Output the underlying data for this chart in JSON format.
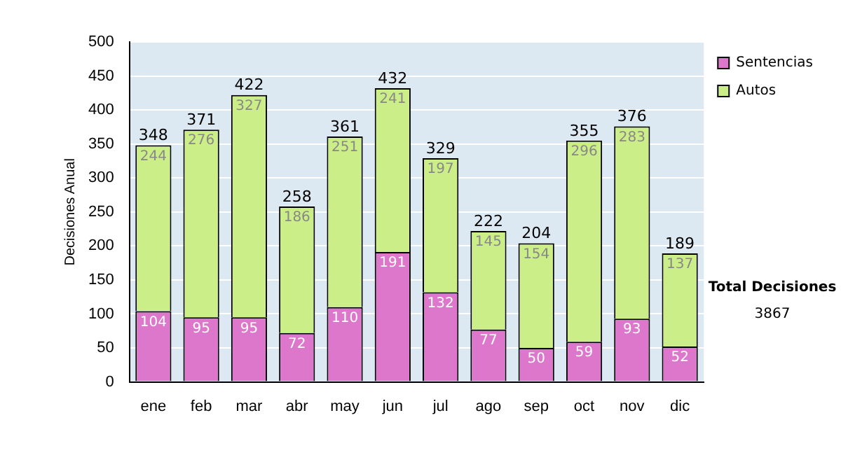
{
  "chart_data": {
    "type": "bar",
    "ylabel": "Decisiones Anual",
    "categories": [
      "ene",
      "feb",
      "mar",
      "abr",
      "may",
      "jun",
      "jul",
      "ago",
      "sep",
      "oct",
      "nov",
      "dic"
    ],
    "series": [
      {
        "name": "Sentencias",
        "color": "#dd77cc",
        "values": [
          104,
          95,
          95,
          72,
          110,
          191,
          132,
          77,
          50,
          59,
          93,
          52
        ]
      },
      {
        "name": "Autos",
        "color": "#ccee88",
        "values": [
          244,
          276,
          327,
          186,
          251,
          241,
          197,
          145,
          154,
          296,
          283,
          137
        ]
      }
    ],
    "stacked": true,
    "ylim": [
      0,
      500
    ],
    "yticks": [
      0,
      50,
      100,
      150,
      200,
      250,
      300,
      350,
      400,
      450,
      500
    ],
    "grid": "y",
    "legend": "right",
    "data_labels": true,
    "totals": [
      "348",
      "371",
      "422",
      "258",
      "361",
      "432",
      "329",
      "222",
      "204",
      "355",
      "376",
      "189"
    ],
    "annotations": [
      "Total Decisiones",
      "3867"
    ]
  }
}
